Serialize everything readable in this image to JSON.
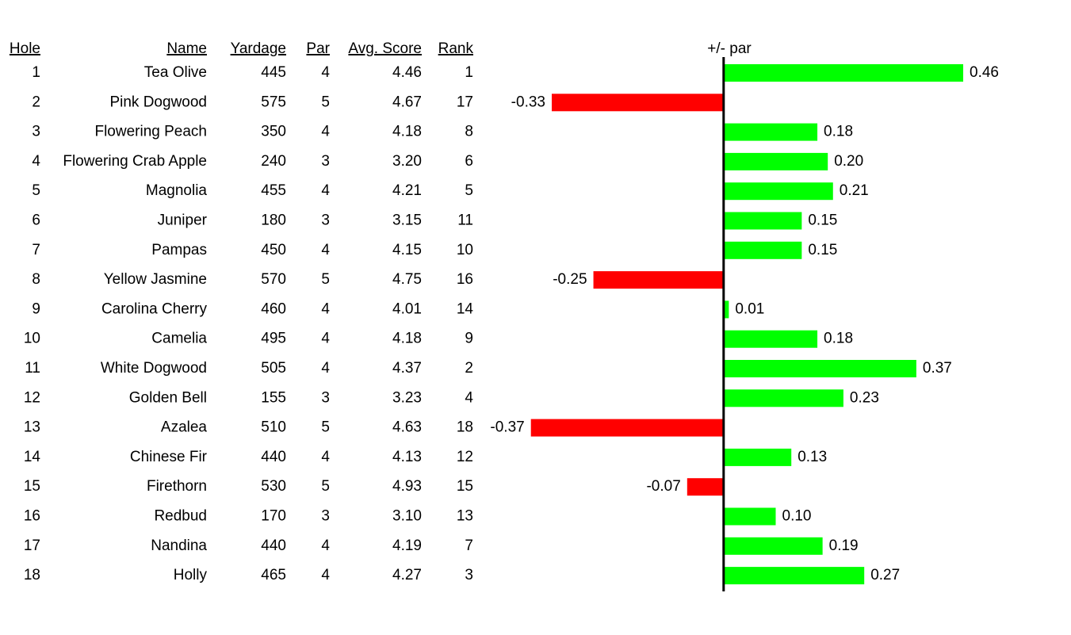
{
  "table": {
    "headers": [
      "Hole",
      "Name",
      "Yardage",
      "Par",
      "Avg. Score",
      "Rank"
    ],
    "rows": [
      [
        "1",
        "Tea Olive",
        "445",
        "4",
        "4.46",
        "1"
      ],
      [
        "2",
        "Pink Dogwood",
        "575",
        "5",
        "4.67",
        "17"
      ],
      [
        "3",
        "Flowering Peach",
        "350",
        "4",
        "4.18",
        "8"
      ],
      [
        "4",
        "Flowering Crab Apple",
        "240",
        "3",
        "3.20",
        "6"
      ],
      [
        "5",
        "Magnolia",
        "455",
        "4",
        "4.21",
        "5"
      ],
      [
        "6",
        "Juniper",
        "180",
        "3",
        "3.15",
        "11"
      ],
      [
        "7",
        "Pampas",
        "450",
        "4",
        "4.15",
        "10"
      ],
      [
        "8",
        "Yellow Jasmine",
        "570",
        "5",
        "4.75",
        "16"
      ],
      [
        "9",
        "Carolina Cherry",
        "460",
        "4",
        "4.01",
        "14"
      ],
      [
        "10",
        "Camelia",
        "495",
        "4",
        "4.18",
        "9"
      ],
      [
        "11",
        "White Dogwood",
        "505",
        "4",
        "4.37",
        "2"
      ],
      [
        "12",
        "Golden Bell",
        "155",
        "3",
        "3.23",
        "4"
      ],
      [
        "13",
        "Azalea",
        "510",
        "5",
        "4.63",
        "18"
      ],
      [
        "14",
        "Chinese Fir",
        "440",
        "4",
        "4.13",
        "12"
      ],
      [
        "15",
        "Firethorn",
        "530",
        "5",
        "4.93",
        "15"
      ],
      [
        "16",
        "Redbud",
        "170",
        "3",
        "3.10",
        "13"
      ],
      [
        "17",
        "Nandina",
        "440",
        "4",
        "4.19",
        "7"
      ],
      [
        "18",
        "Holly",
        "465",
        "4",
        "4.27",
        "3"
      ]
    ]
  },
  "chart_data": {
    "type": "bar",
    "orientation": "horizontal",
    "title": "+/- par",
    "values": [
      0.46,
      -0.33,
      0.18,
      0.2,
      0.21,
      0.15,
      0.15,
      -0.25,
      0.01,
      0.18,
      0.37,
      0.23,
      -0.37,
      0.13,
      -0.07,
      0.1,
      0.19,
      0.27
    ],
    "value_labels": [
      "0.46",
      "-0.33",
      "0.18",
      "0.20",
      "0.21",
      "0.15",
      "0.15",
      "-0.25",
      "0.01",
      "0.18",
      "0.37",
      "0.23",
      "-0.37",
      "0.13",
      "-0.07",
      "0.10",
      "0.19",
      "0.27"
    ],
    "positive_color": "#00ff00",
    "negative_color": "#ff0000",
    "xlim": [
      -0.4,
      0.6
    ]
  }
}
